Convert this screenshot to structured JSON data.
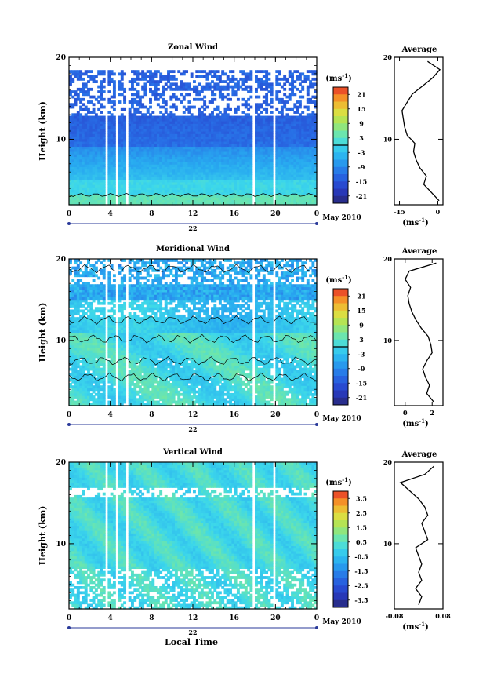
{
  "figure": {
    "date_label": "May 2010",
    "day_label": "22",
    "bottom_xlabel": "Local Time"
  },
  "chart_data": [
    {
      "type": "heatmap",
      "title": "Zonal Wind",
      "ylabel": "Height (km)",
      "xticks": [
        "0",
        "4",
        "8",
        "12",
        "16",
        "20",
        "0"
      ],
      "yticks": [
        "10",
        "20"
      ],
      "xlim": [
        0,
        24
      ],
      "ylim": [
        2,
        20
      ],
      "colorbar": {
        "unit_base": "(ms",
        "unit_sup": "-1",
        "unit_end": ")",
        "ticks": [
          "21",
          "15",
          "9",
          "3",
          "-3",
          "-9",
          "-15",
          "-21"
        ],
        "range": [
          -24,
          24
        ],
        "contour": 0
      },
      "profile": {
        "title": "Average",
        "xticks": [
          "-15",
          "0"
        ],
        "xlim": [
          -17,
          2
        ],
        "xlabel_base": "(ms",
        "xlabel_sup": "-1",
        "xlabel_end": ")",
        "yticks": [
          "10",
          "20"
        ],
        "heights": [
          2.5,
          3.5,
          4.5,
          5.5,
          6.5,
          7.5,
          8.5,
          9.5,
          10.5,
          11.5,
          12.5,
          13.5,
          14.5,
          15.5,
          16.5,
          17.5,
          18.5,
          19.5
        ],
        "values": [
          0.5,
          -2.5,
          -5.5,
          -4.5,
          -7,
          -8.5,
          -9.5,
          -9,
          -12,
          -13,
          -13.5,
          -14,
          -12,
          -10,
          -6,
          -2,
          0.8,
          -4
        ]
      }
    },
    {
      "type": "heatmap",
      "title": "Meridional Wind",
      "ylabel": "Height (km)",
      "xticks": [
        "0",
        "4",
        "8",
        "12",
        "16",
        "20",
        "0"
      ],
      "yticks": [
        "10",
        "20"
      ],
      "xlim": [
        0,
        24
      ],
      "ylim": [
        2,
        20
      ],
      "colorbar": {
        "unit_base": "(ms",
        "unit_sup": "-1",
        "unit_end": ")",
        "ticks": [
          "21",
          "15",
          "9",
          "3",
          "-3",
          "-9",
          "-15",
          "-21"
        ],
        "range": [
          -24,
          24
        ],
        "contour": 0
      },
      "profile": {
        "title": "Average",
        "xticks": [
          "0",
          "2"
        ],
        "xlim": [
          -0.8,
          2.8
        ],
        "xlabel_base": "(ms",
        "xlabel_sup": "-1",
        "xlabel_end": ")",
        "yticks": [
          "10",
          "20"
        ],
        "heights": [
          2.5,
          3.5,
          4.5,
          5.5,
          6.5,
          7.5,
          8.5,
          9.5,
          10.5,
          11.5,
          12.5,
          13.5,
          14.5,
          15.5,
          16.5,
          17.5,
          18.5,
          19.5
        ],
        "values": [
          2.1,
          1.6,
          1.8,
          1.5,
          1.3,
          1.6,
          2.0,
          1.9,
          1.7,
          1.2,
          0.8,
          0.5,
          0.3,
          0.2,
          0.4,
          0.0,
          0.3,
          2.3
        ]
      }
    },
    {
      "type": "heatmap",
      "title": "Vertical Wind",
      "ylabel": "Height (km)",
      "xticks": [
        "0",
        "4",
        "8",
        "12",
        "16",
        "20",
        "0"
      ],
      "yticks": [
        "10",
        "20"
      ],
      "xlim": [
        0,
        24
      ],
      "ylim": [
        2,
        20
      ],
      "colorbar": {
        "unit_base": "(ms",
        "unit_sup": "-1",
        "unit_end": ")",
        "ticks": [
          "3.5",
          "2.5",
          "1.5",
          "0.5",
          "-0.5",
          "-1.5",
          "-2.5",
          "-3.5"
        ],
        "range": [
          -4,
          4
        ],
        "contour": null
      },
      "profile": {
        "title": "Average",
        "xticks": [
          "-0.08",
          "0.08"
        ],
        "xlim": [
          -0.08,
          0.08
        ],
        "xlabel_base": "(ms",
        "xlabel_sup": "-1",
        "xlabel_end": ")",
        "yticks": [
          "10",
          "20"
        ],
        "heights": [
          2.5,
          3.5,
          4.5,
          5.5,
          6.5,
          7.5,
          8.5,
          9.5,
          10.5,
          11.5,
          12.5,
          13.5,
          14.5,
          15.5,
          16.5,
          17.5,
          18.5,
          19.5
        ],
        "values": [
          0.0,
          0.01,
          -0.01,
          0.01,
          0.0,
          0.01,
          0.0,
          -0.01,
          0.03,
          0.02,
          0.01,
          0.03,
          0.02,
          0.0,
          -0.03,
          -0.06,
          0.02,
          0.05
        ]
      }
    }
  ]
}
